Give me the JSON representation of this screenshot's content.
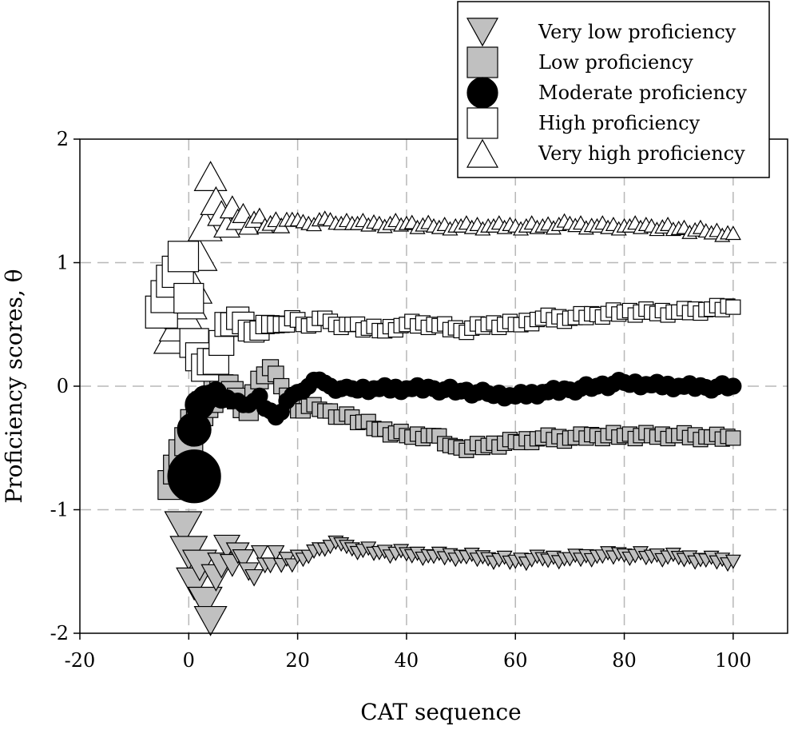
{
  "chart_data": {
    "type": "scatter",
    "title": "",
    "xlabel": "CAT sequence",
    "ylabel": "Proficiency scores, θ",
    "xlim": [
      -20,
      110
    ],
    "ylim": [
      -2,
      2
    ],
    "xticks": [
      "-20",
      "0",
      "20",
      "40",
      "60",
      "80",
      "100"
    ],
    "yticks": [
      "-2",
      "-1",
      "0",
      "1",
      "2"
    ],
    "grid": "dashed",
    "legend_position": "top-right",
    "series": [
      {
        "name": "Very low proficiency",
        "marker": "triangle-down",
        "color": "#c0c0c0",
        "x": [
          -1,
          0,
          1,
          2,
          3,
          4,
          5,
          6,
          7,
          8,
          9,
          10,
          11,
          12,
          13,
          14,
          15,
          16,
          17,
          18,
          19,
          20,
          22,
          24,
          26,
          28,
          30,
          35,
          40,
          45,
          50,
          55,
          60,
          65,
          70,
          75,
          80,
          85,
          90,
          95,
          100
        ],
        "y": [
          -1.15,
          -1.35,
          -1.6,
          -1.45,
          -1.75,
          -1.9,
          -1.55,
          -1.45,
          -1.3,
          -1.45,
          -1.35,
          -1.4,
          -1.5,
          -1.55,
          -1.35,
          -1.45,
          -1.45,
          -1.35,
          -1.45,
          -1.4,
          -1.45,
          -1.38,
          -1.38,
          -1.32,
          -1.3,
          -1.28,
          -1.32,
          -1.35,
          -1.36,
          -1.38,
          -1.38,
          -1.4,
          -1.42,
          -1.4,
          -1.4,
          -1.38,
          -1.37,
          -1.38,
          -1.39,
          -1.41,
          -1.42
        ],
        "sizes": [
          46,
          46,
          44,
          42,
          42,
          40,
          36,
          34,
          32,
          30,
          28,
          26,
          24,
          22,
          20,
          20,
          20,
          20,
          19,
          19,
          18,
          18,
          18,
          18,
          18,
          18,
          18,
          18,
          18,
          18,
          18,
          18,
          18,
          18,
          18,
          18,
          18,
          18,
          18,
          18,
          18
        ]
      },
      {
        "name": "Low proficiency",
        "marker": "square",
        "color": "#c0c0c0",
        "x": [
          -3,
          -1,
          1,
          3,
          5,
          7,
          9,
          11,
          13,
          15,
          17,
          19,
          21,
          23,
          25,
          27,
          30,
          35,
          40,
          45,
          48,
          50,
          55,
          60,
          65,
          70,
          75,
          80,
          85,
          90,
          95,
          100
        ],
        "y": [
          -0.8,
          -0.55,
          -0.3,
          -0.15,
          -0.05,
          0.0,
          -0.1,
          -0.2,
          0.05,
          0.15,
          0.0,
          -0.15,
          -0.2,
          -0.15,
          -0.2,
          -0.25,
          -0.25,
          -0.35,
          -0.4,
          -0.4,
          -0.48,
          -0.5,
          -0.48,
          -0.45,
          -0.42,
          -0.42,
          -0.4,
          -0.4,
          -0.4,
          -0.4,
          -0.41,
          -0.42
        ],
        "sizes": [
          36,
          36,
          34,
          32,
          30,
          28,
          26,
          24,
          22,
          20,
          19,
          18,
          18,
          18,
          18,
          18,
          18,
          18,
          18,
          18,
          18,
          18,
          18,
          18,
          18,
          18,
          18,
          18,
          18,
          18,
          18,
          18
        ]
      },
      {
        "name": "Moderate proficiency",
        "marker": "circle",
        "color": "#000000",
        "x": [
          1,
          1,
          2,
          3,
          4,
          5,
          6,
          7,
          8,
          9,
          10,
          11,
          12,
          13,
          14,
          15,
          16,
          18,
          20,
          22,
          24,
          26,
          28,
          30,
          35,
          40,
          45,
          50,
          55,
          60,
          65,
          70,
          75,
          80,
          85,
          90,
          95,
          100
        ],
        "y": [
          -0.73,
          -0.35,
          -0.15,
          -0.1,
          -0.08,
          -0.05,
          -0.1,
          -0.1,
          -0.12,
          -0.12,
          -0.15,
          -0.15,
          -0.12,
          -0.08,
          -0.18,
          -0.2,
          -0.25,
          -0.12,
          -0.05,
          0.0,
          0.05,
          0.0,
          -0.02,
          -0.02,
          -0.02,
          -0.02,
          -0.02,
          -0.04,
          -0.06,
          -0.08,
          -0.05,
          -0.03,
          0.0,
          0.03,
          0.01,
          0.0,
          -0.01,
          0.0
        ],
        "sizes": [
          66,
          42,
          36,
          32,
          28,
          26,
          24,
          22,
          20,
          20,
          20,
          20,
          20,
          20,
          20,
          20,
          20,
          20,
          20,
          20,
          20,
          20,
          20,
          20,
          20,
          20,
          20,
          20,
          20,
          20,
          20,
          20,
          20,
          20,
          20,
          20,
          20,
          20
        ]
      },
      {
        "name": "High proficiency",
        "marker": "square",
        "color": "#ffffff",
        "x": [
          -5,
          -3,
          -1,
          1,
          3,
          5,
          7,
          9,
          11,
          13,
          15,
          17,
          19,
          21,
          23,
          25,
          27,
          30,
          35,
          40,
          45,
          50,
          55,
          60,
          65,
          70,
          75,
          80,
          85,
          90,
          95,
          100
        ],
        "y": [
          0.6,
          0.85,
          1.05,
          0.35,
          0.15,
          0.2,
          0.5,
          0.55,
          0.45,
          0.45,
          0.5,
          0.5,
          0.55,
          0.5,
          0.5,
          0.55,
          0.5,
          0.5,
          0.45,
          0.5,
          0.5,
          0.45,
          0.5,
          0.5,
          0.55,
          0.55,
          0.58,
          0.6,
          0.6,
          0.6,
          0.62,
          0.64
        ],
        "sizes": [
          40,
          40,
          38,
          36,
          34,
          32,
          30,
          28,
          26,
          24,
          22,
          20,
          19,
          18,
          18,
          18,
          18,
          18,
          18,
          18,
          18,
          18,
          18,
          18,
          18,
          18,
          18,
          18,
          18,
          18,
          18,
          18
        ]
      },
      {
        "name": "Very high proficiency",
        "marker": "triangle-up",
        "color": "#ffffff",
        "x": [
          -3,
          -1,
          1,
          3,
          4,
          5,
          6,
          7,
          8,
          9,
          10,
          11,
          12,
          13,
          14,
          15,
          16,
          17,
          18,
          19,
          20,
          22,
          24,
          26,
          28,
          30,
          35,
          40,
          45,
          50,
          55,
          60,
          65,
          70,
          75,
          80,
          85,
          90,
          95,
          100
        ],
        "y": [
          0.4,
          0.6,
          0.8,
          1.3,
          1.7,
          1.5,
          1.4,
          1.3,
          1.45,
          1.35,
          1.4,
          1.3,
          1.35,
          1.38,
          1.3,
          1.32,
          1.35,
          1.3,
          1.35,
          1.35,
          1.35,
          1.32,
          1.35,
          1.35,
          1.32,
          1.32,
          1.32,
          1.32,
          1.3,
          1.3,
          1.3,
          1.3,
          1.3,
          1.32,
          1.3,
          1.3,
          1.3,
          1.28,
          1.26,
          1.24
        ],
        "sizes": [
          46,
          46,
          44,
          42,
          40,
          38,
          34,
          32,
          30,
          28,
          26,
          24,
          22,
          20,
          20,
          20,
          20,
          20,
          19,
          19,
          18,
          18,
          18,
          18,
          18,
          18,
          18,
          18,
          18,
          18,
          18,
          18,
          18,
          18,
          18,
          18,
          18,
          18,
          18,
          18
        ]
      }
    ]
  }
}
